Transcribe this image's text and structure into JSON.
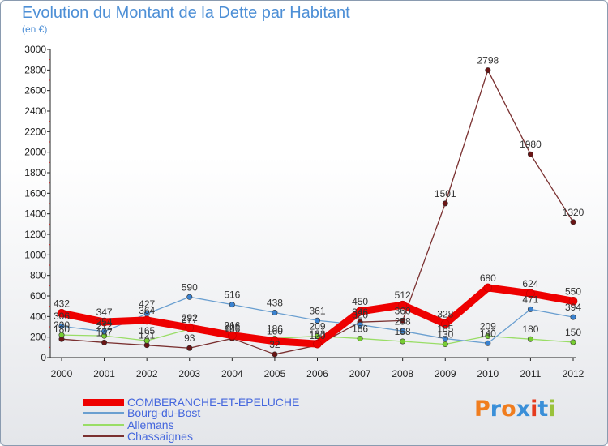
{
  "header": {
    "title": "Evolution du Montant de la Dette par Habitant",
    "subtitle": "(en €)"
  },
  "logo": {
    "text": "Proxiti",
    "letter_colors": [
      "#f07d1e",
      "#3a8fd8",
      "#f07d1e",
      "#3a8fd8",
      "#e53b1e",
      "#3a8fd8",
      "#9ac23c"
    ]
  },
  "chart_data": {
    "type": "line",
    "x": [
      2000,
      2001,
      2002,
      2003,
      2004,
      2005,
      2006,
      2007,
      2008,
      2009,
      2010,
      2011,
      2012
    ],
    "ylim": [
      0,
      3000
    ],
    "yticks": [
      0,
      200,
      400,
      600,
      800,
      1000,
      1200,
      1400,
      1600,
      1800,
      2000,
      2200,
      2400,
      2600,
      2800,
      3000
    ],
    "grid": false,
    "legend_position": "bottom-left",
    "series": [
      {
        "name": "COMBERANCHE-ET-ÉPELUCHE",
        "color": "#ee0000",
        "marker_color": "#ee0000",
        "values": [
          432,
          347,
          364,
          292,
          216,
          160,
          133,
          450,
          512,
          328,
          680,
          624,
          550
        ],
        "labels": [
          "432",
          "347",
          "364",
          "292",
          "216",
          "160",
          "133",
          "450",
          "512",
          "328",
          "680",
          "624",
          "550"
        ]
      },
      {
        "name": "Bourg-du-Bost",
        "color": "#6a9fd0",
        "marker_color": "#3a82d0",
        "values": [
          306,
          254,
          427,
          590,
          516,
          438,
          361,
          320,
          258,
          185,
          140,
          471,
          394
        ],
        "labels": [
          "306",
          "254",
          "427",
          "590",
          "516",
          "438",
          "361",
          "320",
          "258",
          "185",
          "140",
          "471",
          "394"
        ]
      },
      {
        "name": "Allemans",
        "color": "#99dd66",
        "marker_color": "#77cc33",
        "values": [
          220,
          212,
          165,
          277,
          201,
          186,
          209,
          186,
          158,
          130,
          209,
          180,
          150
        ],
        "labels": [
          "220",
          "212",
          "165",
          "277",
          "201",
          "186",
          "209",
          "186",
          "158",
          "130",
          "209",
          "180",
          "150"
        ]
      },
      {
        "name": "Chassaignes",
        "color": "#7a3030",
        "marker_color": "#6a1515",
        "values": [
          180,
          147,
          121,
          93,
          186,
          32,
          120,
          346,
          360,
          1501,
          2798,
          1980,
          1320
        ],
        "labels": [
          "180",
          "147",
          "121",
          "93",
          "186",
          "32",
          "120",
          "346",
          "360",
          "1501",
          "2798",
          "1980",
          "1320"
        ]
      }
    ]
  }
}
